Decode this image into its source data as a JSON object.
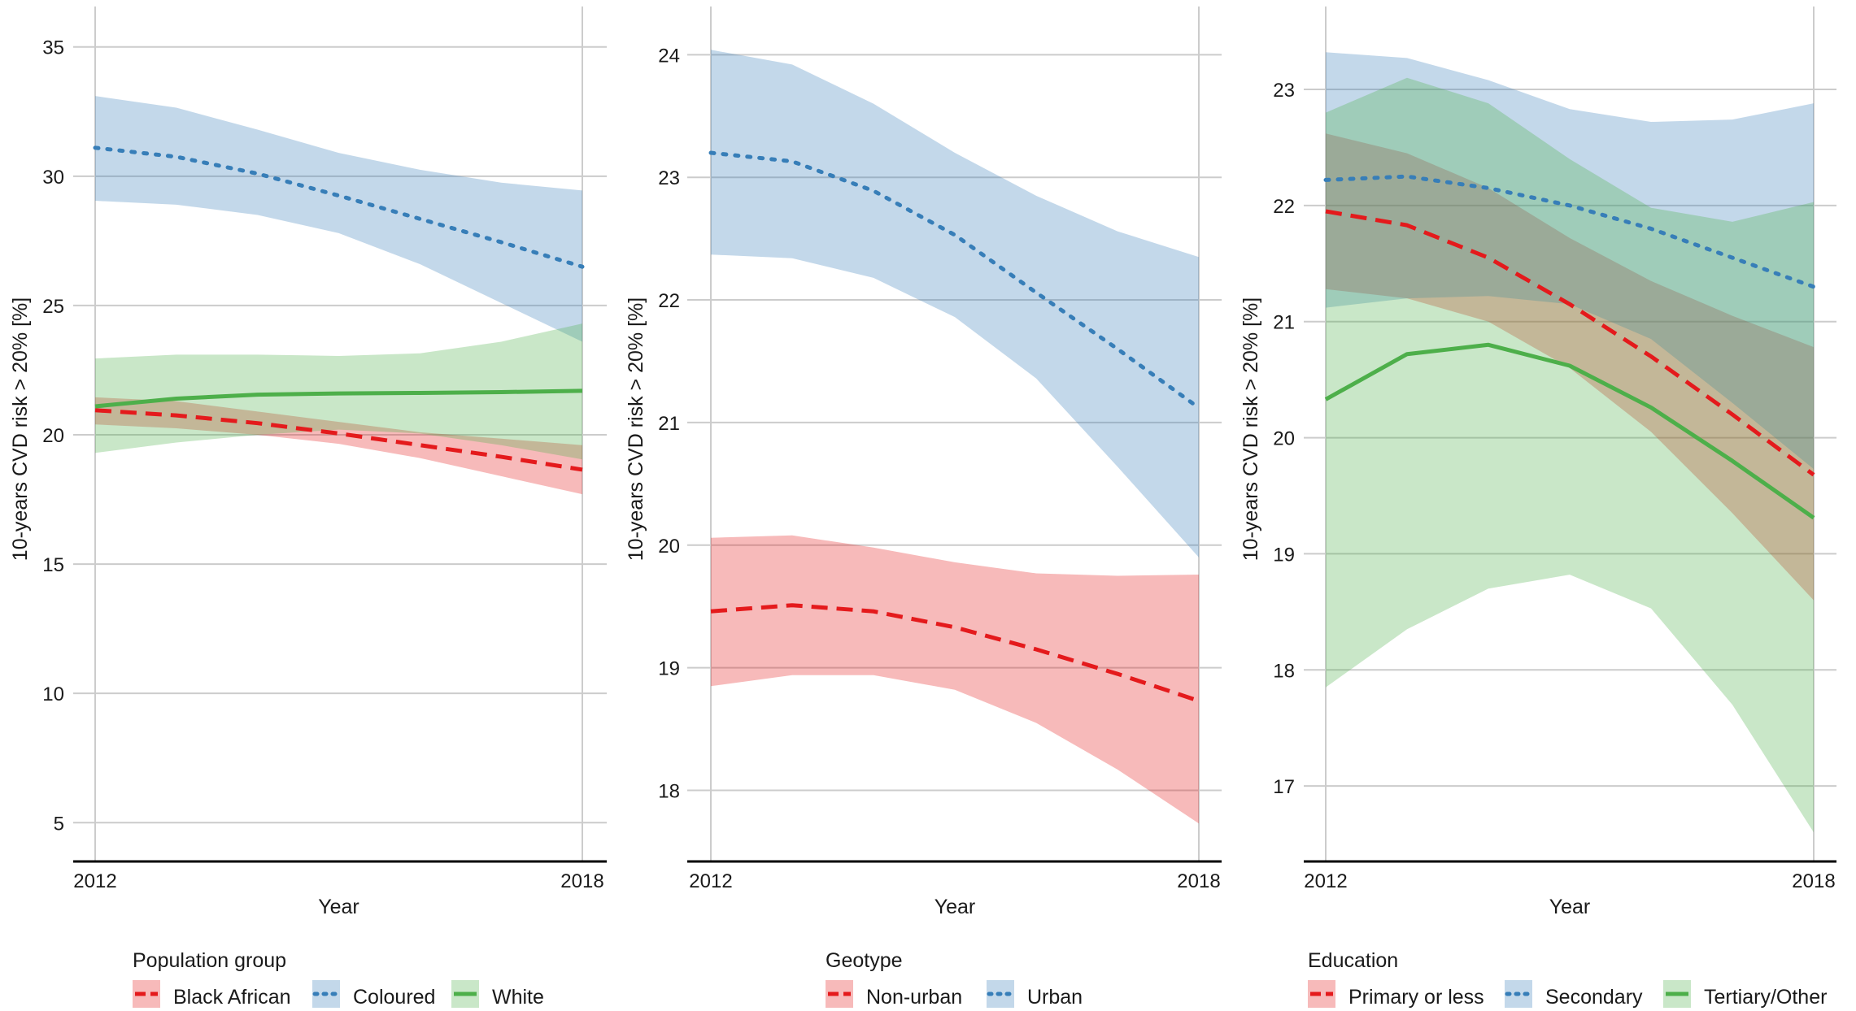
{
  "chart_data": [
    {
      "type": "line",
      "title": "",
      "xlabel": "Year",
      "ylabel": "10-years CVD risk > 20% [%]",
      "x": [
        2012,
        2013,
        2014,
        2015,
        2016,
        2017,
        2018
      ],
      "xticks": [
        2012,
        2018
      ],
      "xlim": [
        2012,
        2018
      ],
      "yticks": [
        5,
        10,
        15,
        20,
        25,
        30,
        35
      ],
      "ylim": [
        3.5,
        36.5
      ],
      "grid": true,
      "legend": {
        "title": "Population group",
        "position": "bottom",
        "entries": [
          "Black African",
          "Coloured",
          "White"
        ]
      },
      "series": [
        {
          "name": "Black African",
          "color": "#e41a1c",
          "linestyle": "dashed",
          "values": [
            20.95,
            20.75,
            20.45,
            20.05,
            19.6,
            19.15,
            18.65
          ],
          "lower": [
            20.4,
            20.25,
            20.0,
            19.65,
            19.1,
            18.4,
            17.7
          ],
          "upper": [
            21.45,
            21.3,
            20.9,
            20.5,
            20.1,
            19.85,
            19.6
          ]
        },
        {
          "name": "Coloured",
          "color": "#377eb8",
          "linestyle": "dotted",
          "values": [
            31.1,
            30.75,
            30.1,
            29.25,
            28.35,
            27.45,
            26.5
          ],
          "lower": [
            29.05,
            28.9,
            28.5,
            27.8,
            26.6,
            25.1,
            23.6
          ],
          "upper": [
            33.1,
            32.65,
            31.8,
            30.9,
            30.25,
            29.75,
            29.45
          ]
        },
        {
          "name": "White",
          "color": "#4daf4a",
          "linestyle": "solid",
          "values": [
            21.1,
            21.4,
            21.55,
            21.6,
            21.62,
            21.65,
            21.7
          ],
          "lower": [
            19.3,
            19.7,
            20.0,
            20.2,
            20.05,
            19.6,
            19.05
          ],
          "upper": [
            22.95,
            23.1,
            23.1,
            23.05,
            23.15,
            23.6,
            24.3
          ]
        }
      ]
    },
    {
      "type": "line",
      "title": "",
      "xlabel": "Year",
      "ylabel": "10-years CVD risk > 20% [%]",
      "x": [
        2012,
        2013,
        2014,
        2015,
        2016,
        2017,
        2018
      ],
      "xticks": [
        2012,
        2018
      ],
      "xlim": [
        2012,
        2018
      ],
      "yticks": [
        18,
        19,
        20,
        21,
        22,
        23,
        24
      ],
      "ylim": [
        17.42,
        24.38
      ],
      "grid": true,
      "legend": {
        "title": "Geotype",
        "position": "bottom",
        "entries": [
          "Non-urban",
          "Urban"
        ]
      },
      "series": [
        {
          "name": "Non-urban",
          "color": "#e41a1c",
          "linestyle": "dashed",
          "values": [
            19.46,
            19.51,
            19.46,
            19.33,
            19.15,
            18.95,
            18.73
          ],
          "lower": [
            18.85,
            18.94,
            18.94,
            18.82,
            18.55,
            18.17,
            17.73
          ],
          "upper": [
            20.06,
            20.08,
            19.98,
            19.86,
            19.77,
            19.75,
            19.76
          ]
        },
        {
          "name": "Urban",
          "color": "#377eb8",
          "linestyle": "dotted",
          "values": [
            23.2,
            23.13,
            22.89,
            22.53,
            22.06,
            21.6,
            21.12
          ],
          "lower": [
            22.37,
            22.34,
            22.18,
            21.86,
            21.36,
            20.64,
            19.9
          ],
          "upper": [
            24.04,
            23.92,
            23.6,
            23.2,
            22.85,
            22.56,
            22.35
          ]
        }
      ]
    },
    {
      "type": "line",
      "title": "",
      "xlabel": "Year",
      "ylabel": "10-years CVD risk > 20% [%]",
      "x": [
        2012,
        2013,
        2014,
        2015,
        2016,
        2017,
        2018
      ],
      "xticks": [
        2012,
        2018
      ],
      "xlim": [
        2012,
        2018
      ],
      "yticks": [
        17,
        18,
        19,
        20,
        21,
        22,
        23
      ],
      "ylim": [
        16.35,
        23.7
      ],
      "grid": true,
      "legend": {
        "title": "Education",
        "position": "bottom",
        "entries": [
          "Primary or less",
          "Secondary",
          "Tertiary/Other"
        ]
      },
      "series": [
        {
          "name": "Primary or less",
          "color": "#e41a1c",
          "linestyle": "dashed",
          "values": [
            21.95,
            21.83,
            21.55,
            21.15,
            20.7,
            20.2,
            19.68
          ],
          "lower": [
            21.28,
            21.2,
            21.0,
            20.6,
            20.05,
            19.35,
            18.6
          ],
          "upper": [
            22.62,
            22.45,
            22.15,
            21.72,
            21.35,
            21.05,
            20.78
          ]
        },
        {
          "name": "Secondary",
          "color": "#377eb8",
          "linestyle": "dotted",
          "values": [
            22.22,
            22.25,
            22.15,
            22.0,
            21.8,
            21.55,
            21.3
          ],
          "lower": [
            21.12,
            21.2,
            21.22,
            21.15,
            20.85,
            20.3,
            19.73
          ],
          "upper": [
            23.32,
            23.27,
            23.08,
            22.83,
            22.72,
            22.74,
            22.88
          ]
        },
        {
          "name": "Tertiary/Other",
          "color": "#4daf4a",
          "linestyle": "solid",
          "values": [
            20.33,
            20.72,
            20.8,
            20.62,
            20.26,
            19.8,
            19.31
          ],
          "lower": [
            17.85,
            18.35,
            18.7,
            18.82,
            18.53,
            17.7,
            16.6
          ],
          "upper": [
            22.8,
            23.1,
            22.88,
            22.4,
            21.98,
            21.86,
            22.03
          ]
        }
      ]
    }
  ]
}
